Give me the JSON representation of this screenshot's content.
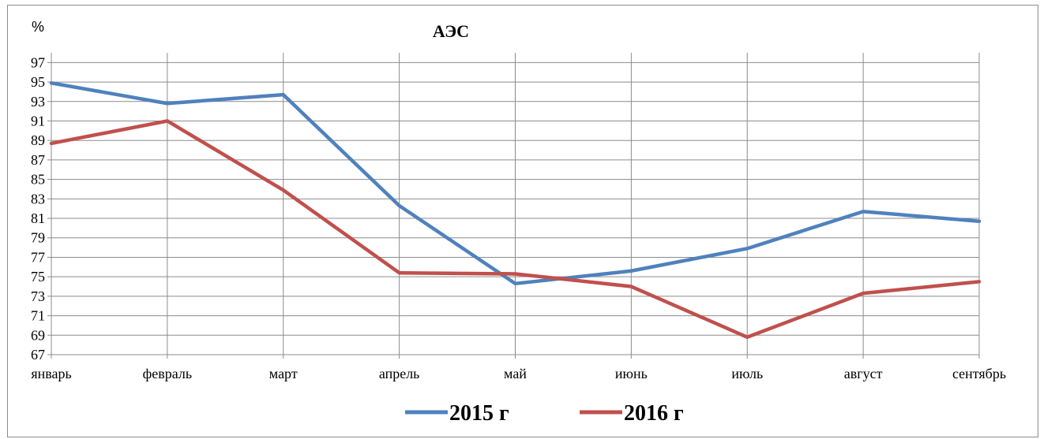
{
  "chart_data": {
    "type": "line",
    "title": "АЭС",
    "ylabel": "%",
    "xlabel": "",
    "categories": [
      "январь",
      "февраль",
      "март",
      "апрель",
      "май",
      "июнь",
      "июль",
      "август",
      "сентябрь"
    ],
    "y_ticks": [
      "67",
      "69",
      "71",
      "73",
      "75",
      "77",
      "79",
      "81",
      "83",
      "85",
      "87",
      "89",
      "91",
      "93",
      "95",
      "97"
    ],
    "ylim": [
      67,
      98
    ],
    "grid": true,
    "legend_position": "bottom",
    "series": [
      {
        "name": "2015 г",
        "color": "#4f81bd",
        "values": [
          94.9,
          92.8,
          93.7,
          82.3,
          74.3,
          75.6,
          77.9,
          81.7,
          80.7
        ]
      },
      {
        "name": "2016 г",
        "color": "#c0504d",
        "values": [
          88.7,
          91.0,
          83.9,
          75.4,
          75.3,
          74.0,
          68.8,
          73.3,
          74.5
        ]
      }
    ]
  }
}
